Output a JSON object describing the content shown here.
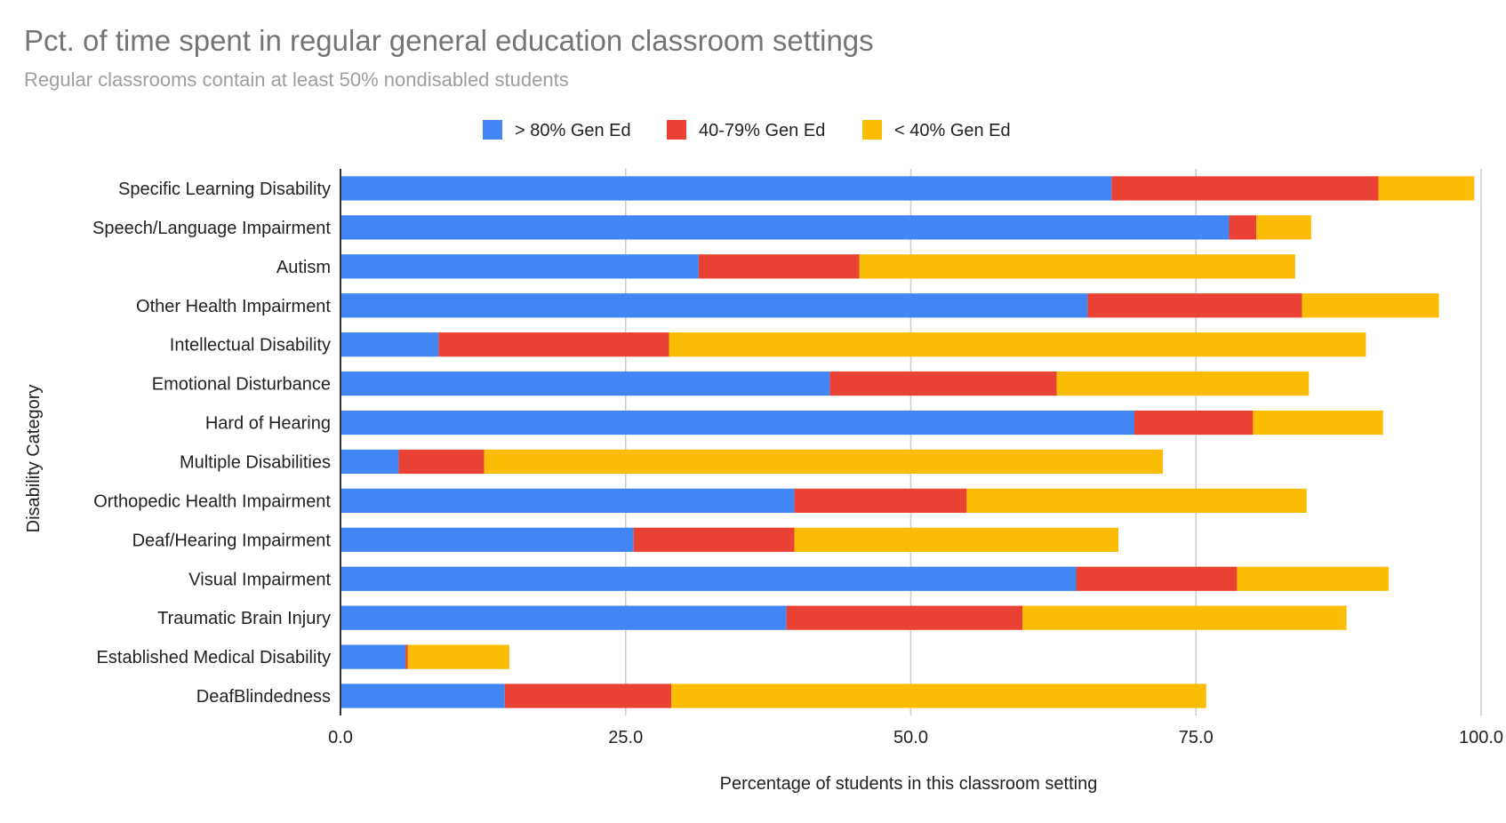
{
  "chart_data": {
    "type": "bar",
    "orientation": "horizontal",
    "stacked": true,
    "title": "Pct. of time spent in regular general education classroom settings",
    "subtitle": "Regular classrooms contain at least 50% nondisabled students",
    "xlabel": "Percentage of students in this classroom setting",
    "ylabel": "Disability Category",
    "xlim": [
      0,
      100
    ],
    "xticks": [
      "0.0",
      "25.0",
      "50.0",
      "75.0",
      "100.0"
    ],
    "xtick_values": [
      0,
      25,
      50,
      75,
      100
    ],
    "grid": true,
    "legend_position": "top",
    "categories": [
      "Specific Learning Disability",
      "Speech/Language Impairment",
      "Autism",
      "Other Health Impairment",
      "Intellectual Disability",
      "Emotional Disturbance",
      "Hard of Hearing",
      "Multiple Disabilities",
      "Orthopedic Health Impairment",
      "Deaf/Hearing Impairment",
      "Visual Impairment",
      "Traumatic Brain Injury",
      "Established Medical Disability",
      "DeafBlindedness"
    ],
    "series": [
      {
        "name": "> 80% Gen Ed",
        "color": "#4285f4",
        "values": [
          67.6,
          77.9,
          31.4,
          65.5,
          8.6,
          42.9,
          69.6,
          5.1,
          39.8,
          25.7,
          64.5,
          39.1,
          5.7,
          14.4
        ]
      },
      {
        "name": "40-79% Gen Ed",
        "color": "#ea4335",
        "values": [
          23.4,
          2.4,
          14.1,
          18.8,
          20.2,
          19.9,
          10.4,
          7.5,
          15.1,
          14.1,
          14.1,
          20.7,
          0.2,
          14.6
        ]
      },
      {
        "name": "< 40% Gen Ed",
        "color": "#fbbc04",
        "values": [
          8.4,
          4.8,
          38.2,
          12.0,
          61.1,
          22.1,
          11.4,
          59.5,
          29.8,
          28.4,
          13.3,
          28.4,
          8.9,
          46.9
        ]
      }
    ]
  }
}
